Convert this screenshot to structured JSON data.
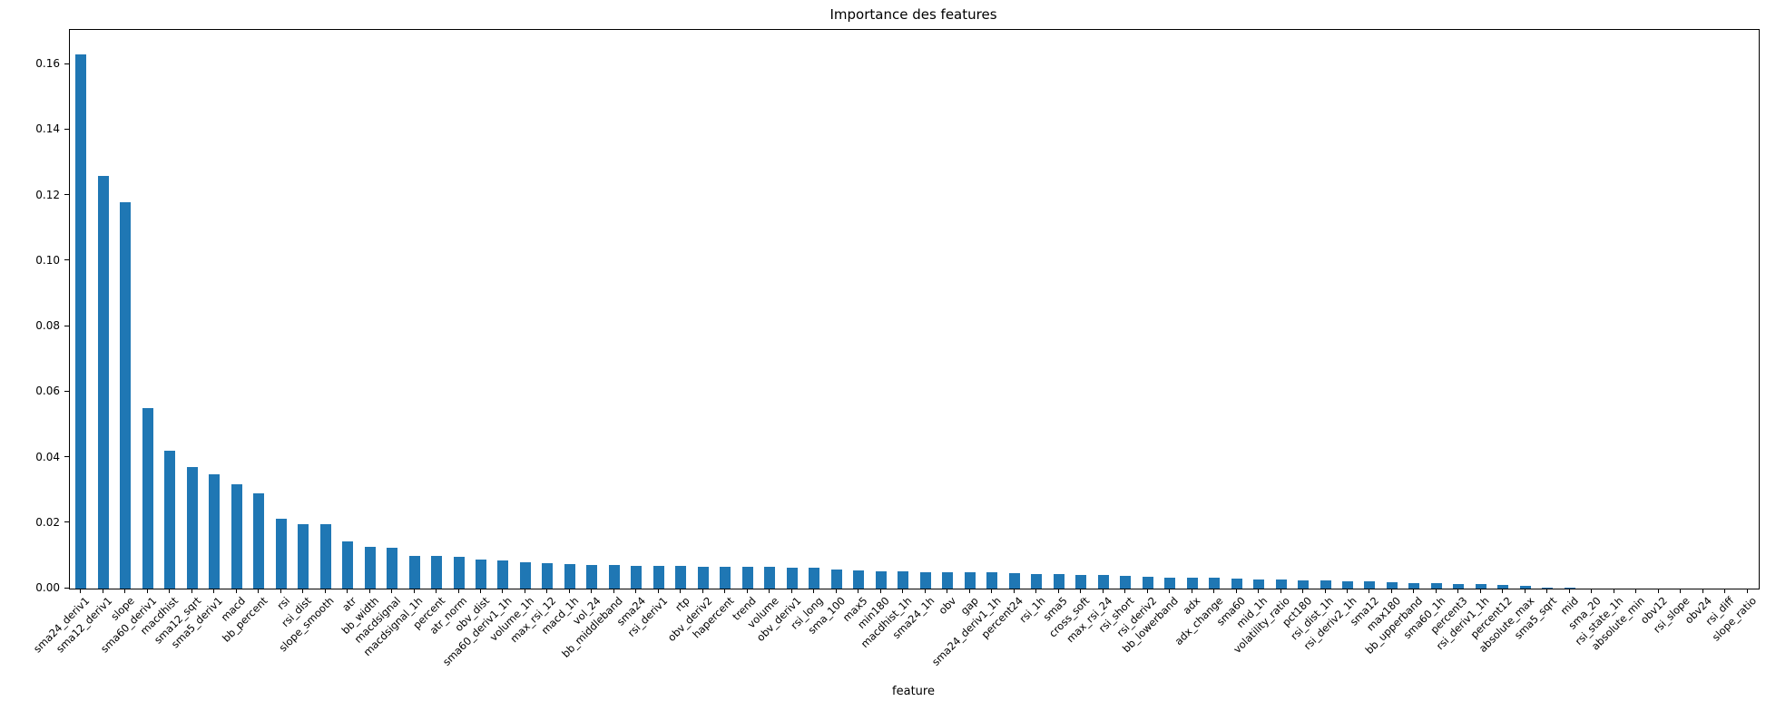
{
  "chart_data": {
    "type": "bar",
    "title": "Importance des features",
    "xlabel": "feature",
    "ylabel": "",
    "bar_color": "#1f77b4",
    "grid": false,
    "legend": null,
    "ylim": [
      0,
      0.1706
    ],
    "yticks": [
      0.0,
      0.02,
      0.04,
      0.06,
      0.08,
      0.1,
      0.12,
      0.14,
      0.16
    ],
    "categories": [
      "sma24_deriv1",
      "sma12_deriv1",
      "slope",
      "sma60_deriv1",
      "macdhist",
      "sma12_sqrt",
      "sma5_deriv1",
      "macd",
      "bb_percent",
      "rsi",
      "rsi_dist",
      "slope_smooth",
      "atr",
      "bb_width",
      "macdsignal",
      "macdsignal_1h",
      "percent",
      "atr_norm",
      "obv_dist",
      "sma60_deriv1_1h",
      "volume_1h",
      "max_rsi_12",
      "macd_1h",
      "vol_24",
      "bb_middleband",
      "sma24",
      "rsi_deriv1",
      "rtp",
      "obv_deriv2",
      "hapercent",
      "trend",
      "volume",
      "obv_deriv1",
      "rsi_long",
      "sma_100",
      "max5",
      "min180",
      "macdhist_1h",
      "sma24_1h",
      "obv",
      "gap",
      "sma24_deriv1_1h",
      "percent24",
      "rsi_1h",
      "sma5",
      "cross_soft",
      "max_rsi_24",
      "rsi_short",
      "rsi_deriv2",
      "bb_lowerband",
      "adx",
      "adx_change",
      "sma60",
      "mid_1h",
      "volatility_ratio",
      "pct180",
      "rsi_dist_1h",
      "rsi_deriv2_1h",
      "sma12",
      "max180",
      "bb_upperband",
      "sma60_1h",
      "percent3",
      "rsi_deriv1_1h",
      "percent12",
      "absolute_max",
      "sma5_sqrt",
      "mid",
      "sma_20",
      "rsi_state_1h",
      "absolute_min",
      "obv12",
      "rsi_slope",
      "obv24",
      "rsi_diff",
      "slope_ratio"
    ],
    "values": [
      0.163,
      0.126,
      0.118,
      0.055,
      0.042,
      0.0372,
      0.035,
      0.0319,
      0.0291,
      0.0212,
      0.0197,
      0.0196,
      0.0145,
      0.0128,
      0.0124,
      0.01,
      0.0099,
      0.0098,
      0.009,
      0.0085,
      0.0081,
      0.0077,
      0.0076,
      0.0073,
      0.0071,
      0.007,
      0.0068,
      0.0068,
      0.0067,
      0.0067,
      0.0066,
      0.0066,
      0.0064,
      0.0063,
      0.0059,
      0.0056,
      0.0054,
      0.0053,
      0.0051,
      0.0051,
      0.005,
      0.005,
      0.0046,
      0.0045,
      0.0045,
      0.0041,
      0.0041,
      0.0039,
      0.0036,
      0.0034,
      0.0033,
      0.0033,
      0.0031,
      0.0028,
      0.0028,
      0.0026,
      0.0025,
      0.0023,
      0.0022,
      0.0019,
      0.0018,
      0.0016,
      0.0014,
      0.0013,
      0.0012,
      0.0008,
      0.0004,
      0.0002,
      0.0001,
      0.0001,
      0.0001,
      0.0001,
      0.0,
      0.0,
      0.0,
      0.0
    ]
  }
}
